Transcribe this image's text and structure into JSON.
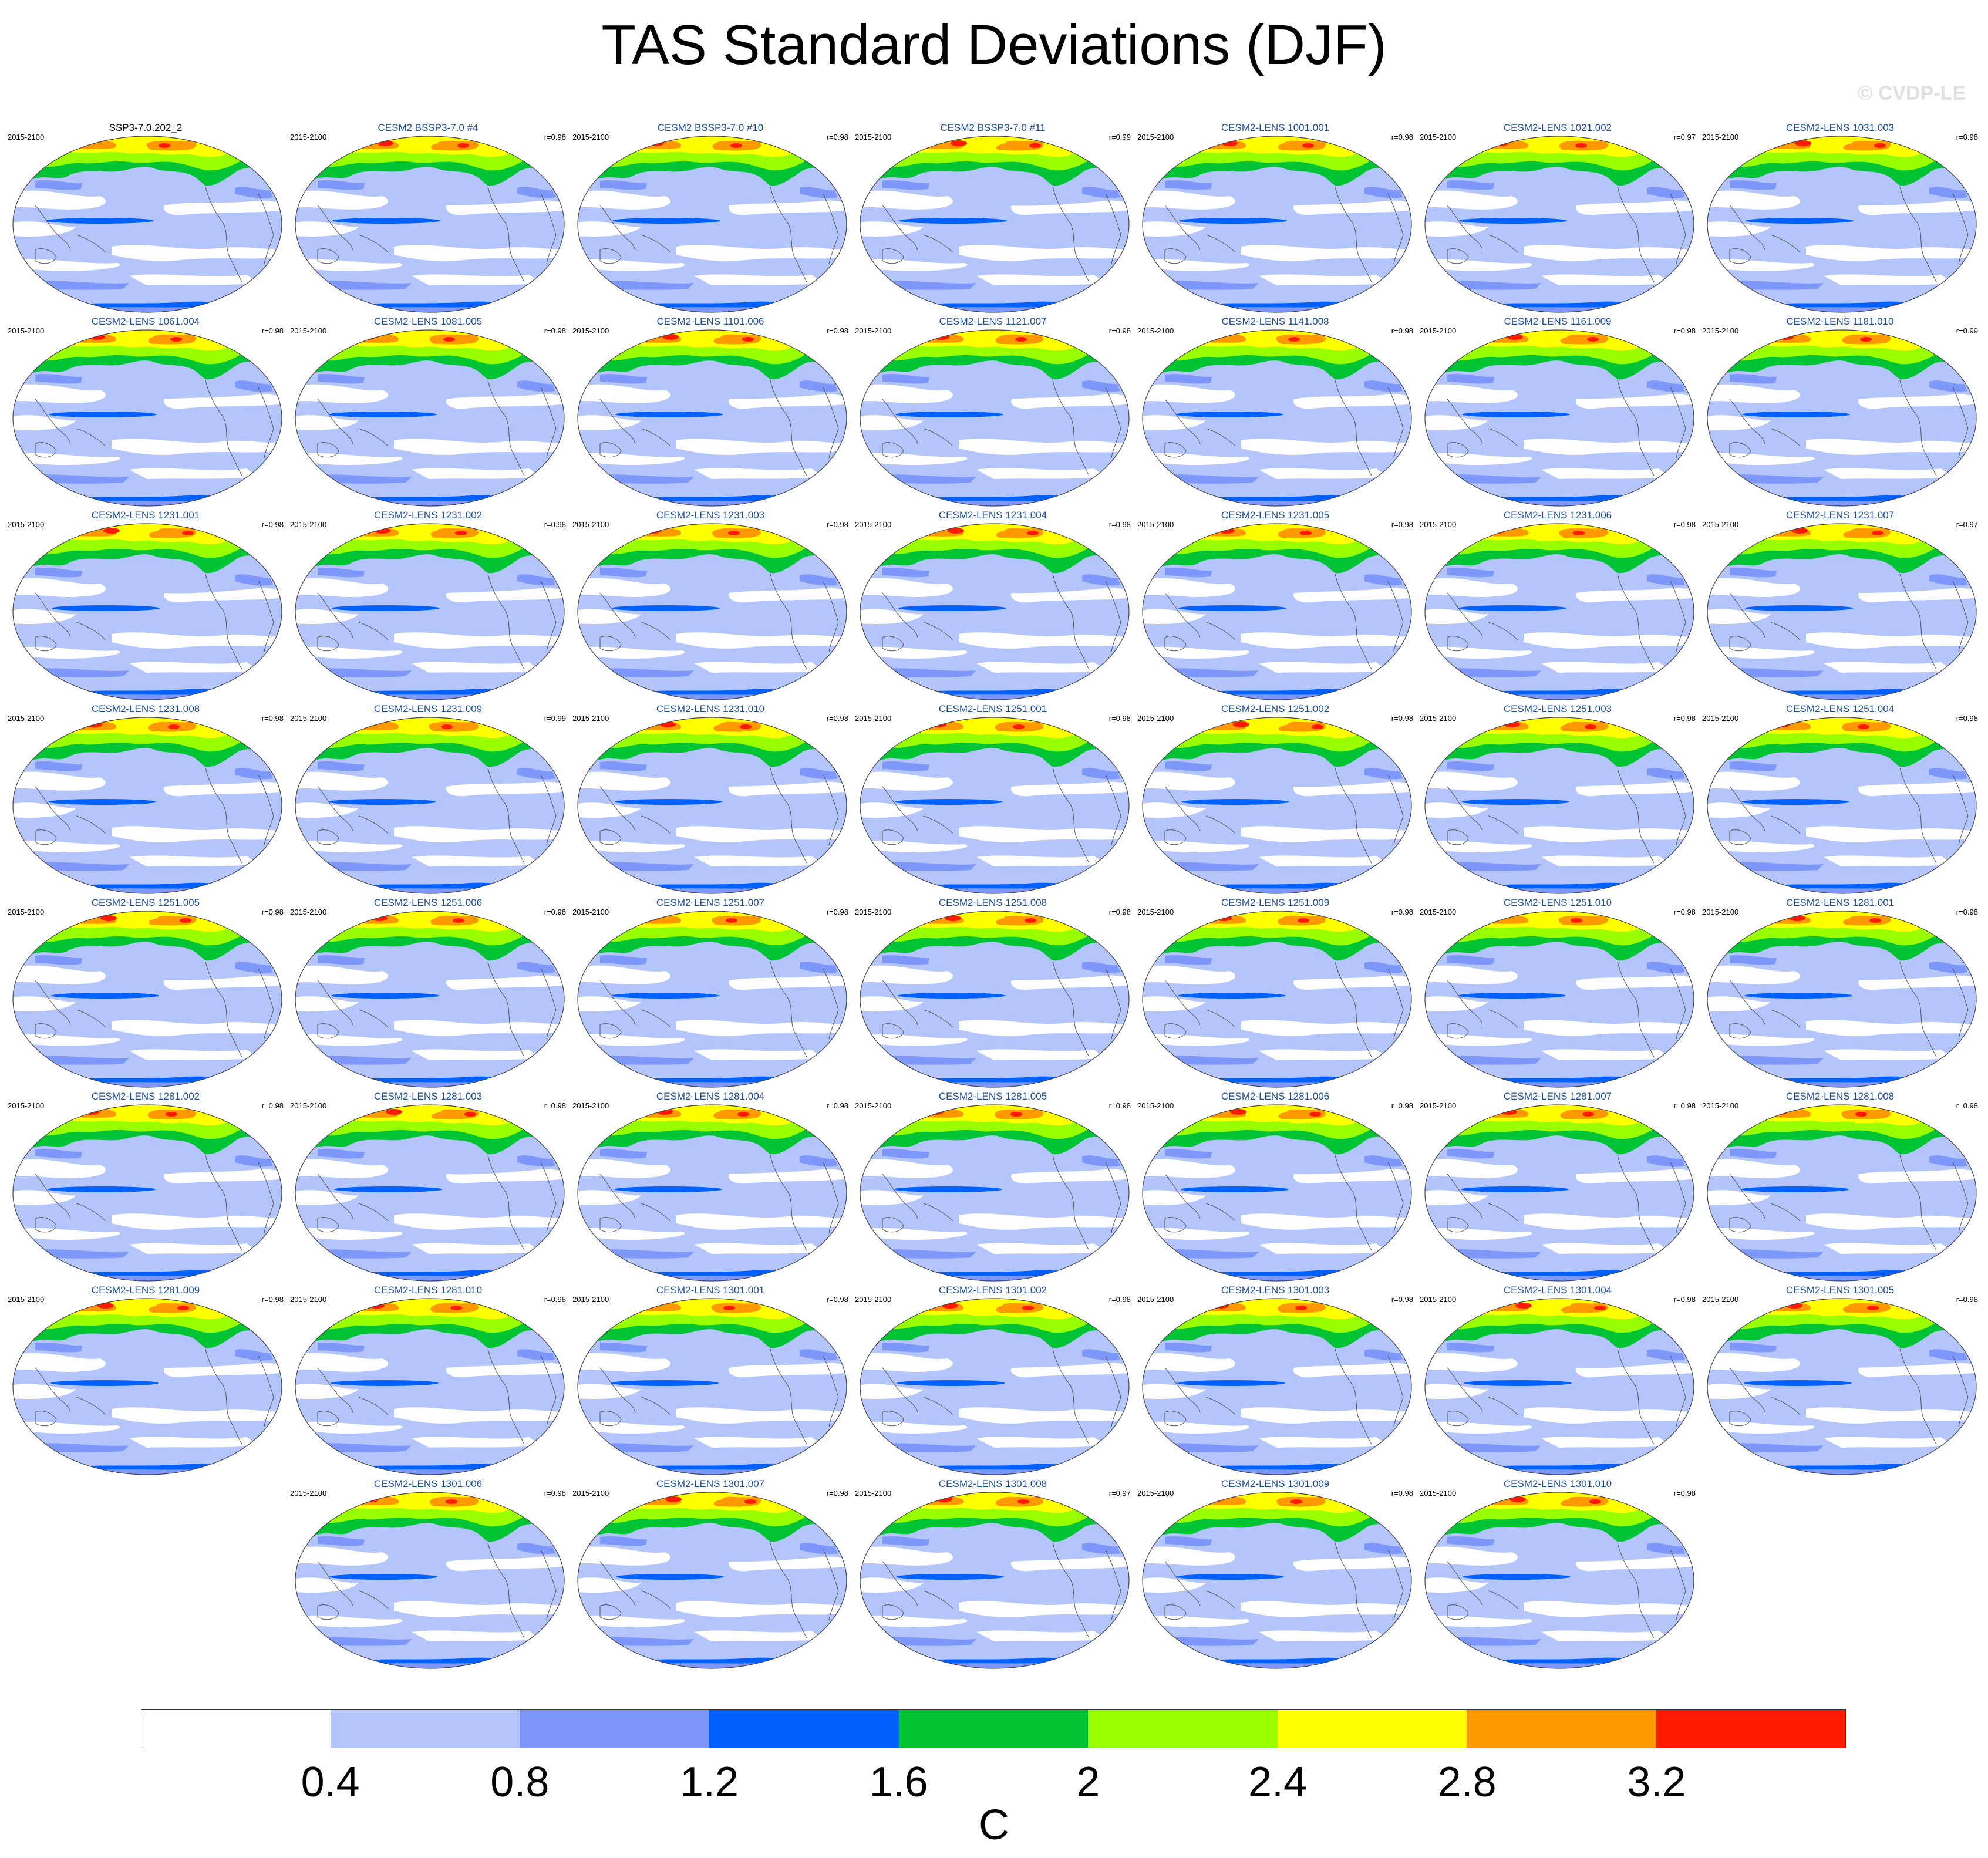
{
  "title": "TAS Standard Deviations (DJF)",
  "watermark": "© CVDP-LE",
  "colorbar": {
    "colors": [
      "#ffffff",
      "#b3c5fb",
      "#7d97fa",
      "#0061ff",
      "#00c433",
      "#99ff00",
      "#ffff00",
      "#ff9900",
      "#ff1a00"
    ],
    "ticks": [
      "0.4",
      "0.8",
      "1.2",
      "1.6",
      "2",
      "2.4",
      "2.8",
      "3.2"
    ],
    "units": "C"
  },
  "map_colors": {
    "ocean_base": "#b3c5fb",
    "low": "#ffffff",
    "mid": "#7d97fa",
    "equatorial": "#0061ff",
    "land_green": "#00c433",
    "land_lime": "#99ff00",
    "land_yellow": "#ffff00",
    "land_orange": "#ff9900",
    "land_red": "#ff1a00",
    "coast": "#555555"
  },
  "panels": [
    {
      "title": "SSP3-7.0.202_2",
      "years": "2015-2100",
      "corr": "",
      "ref": true
    },
    {
      "title": "CESM2 BSSP3-7.0 #4",
      "years": "2015-2100",
      "corr": "r=0.98"
    },
    {
      "title": "CESM2 BSSP3-7.0 #10",
      "years": "2015-2100",
      "corr": "r=0.98"
    },
    {
      "title": "CESM2 BSSP3-7.0 #11",
      "years": "2015-2100",
      "corr": "r=0.99"
    },
    {
      "title": "CESM2-LENS 1001.001",
      "years": "2015-2100",
      "corr": "r=0.98"
    },
    {
      "title": "CESM2-LENS 1021.002",
      "years": "2015-2100",
      "corr": "r=0.97"
    },
    {
      "title": "CESM2-LENS 1031.003",
      "years": "2015-2100",
      "corr": "r=0.98"
    },
    {
      "title": "CESM2-LENS 1061.004",
      "years": "2015-2100",
      "corr": "r=0.98"
    },
    {
      "title": "CESM2-LENS 1081.005",
      "years": "2015-2100",
      "corr": "r=0.98"
    },
    {
      "title": "CESM2-LENS 1101.006",
      "years": "2015-2100",
      "corr": "r=0.98"
    },
    {
      "title": "CESM2-LENS 1121.007",
      "years": "2015-2100",
      "corr": "r=0.98"
    },
    {
      "title": "CESM2-LENS 1141.008",
      "years": "2015-2100",
      "corr": "r=0.98"
    },
    {
      "title": "CESM2-LENS 1161.009",
      "years": "2015-2100",
      "corr": "r=0.98"
    },
    {
      "title": "CESM2-LENS 1181.010",
      "years": "2015-2100",
      "corr": "r=0.99"
    },
    {
      "title": "CESM2-LENS 1231.001",
      "years": "2015-2100",
      "corr": "r=0.98"
    },
    {
      "title": "CESM2-LENS 1231.002",
      "years": "2015-2100",
      "corr": "r=0.98"
    },
    {
      "title": "CESM2-LENS 1231.003",
      "years": "2015-2100",
      "corr": "r=0.98"
    },
    {
      "title": "CESM2-LENS 1231.004",
      "years": "2015-2100",
      "corr": "r=0.98"
    },
    {
      "title": "CESM2-LENS 1231.005",
      "years": "2015-2100",
      "corr": "r=0.98"
    },
    {
      "title": "CESM2-LENS 1231.006",
      "years": "2015-2100",
      "corr": "r=0.98"
    },
    {
      "title": "CESM2-LENS 1231.007",
      "years": "2015-2100",
      "corr": "r=0.97"
    },
    {
      "title": "CESM2-LENS 1231.008",
      "years": "2015-2100",
      "corr": "r=0.98"
    },
    {
      "title": "CESM2-LENS 1231.009",
      "years": "2015-2100",
      "corr": "r=0.99"
    },
    {
      "title": "CESM2-LENS 1231.010",
      "years": "2015-2100",
      "corr": "r=0.98"
    },
    {
      "title": "CESM2-LENS 1251.001",
      "years": "2015-2100",
      "corr": "r=0.98"
    },
    {
      "title": "CESM2-LENS 1251.002",
      "years": "2015-2100",
      "corr": "r=0.98"
    },
    {
      "title": "CESM2-LENS 1251.003",
      "years": "2015-2100",
      "corr": "r=0.98"
    },
    {
      "title": "CESM2-LENS 1251.004",
      "years": "2015-2100",
      "corr": "r=0.98"
    },
    {
      "title": "CESM2-LENS 1251.005",
      "years": "2015-2100",
      "corr": "r=0.98"
    },
    {
      "title": "CESM2-LENS 1251.006",
      "years": "2015-2100",
      "corr": "r=0.98"
    },
    {
      "title": "CESM2-LENS 1251.007",
      "years": "2015-2100",
      "corr": "r=0.98"
    },
    {
      "title": "CESM2-LENS 1251.008",
      "years": "2015-2100",
      "corr": "r=0.98"
    },
    {
      "title": "CESM2-LENS 1251.009",
      "years": "2015-2100",
      "corr": "r=0.98"
    },
    {
      "title": "CESM2-LENS 1251.010",
      "years": "2015-2100",
      "corr": "r=0.98"
    },
    {
      "title": "CESM2-LENS 1281.001",
      "years": "2015-2100",
      "corr": "r=0.98"
    },
    {
      "title": "CESM2-LENS 1281.002",
      "years": "2015-2100",
      "corr": "r=0.98"
    },
    {
      "title": "CESM2-LENS 1281.003",
      "years": "2015-2100",
      "corr": "r=0.98"
    },
    {
      "title": "CESM2-LENS 1281.004",
      "years": "2015-2100",
      "corr": "r=0.98"
    },
    {
      "title": "CESM2-LENS 1281.005",
      "years": "2015-2100",
      "corr": "r=0.98"
    },
    {
      "title": "CESM2-LENS 1281.006",
      "years": "2015-2100",
      "corr": "r=0.98"
    },
    {
      "title": "CESM2-LENS 1281.007",
      "years": "2015-2100",
      "corr": "r=0.98"
    },
    {
      "title": "CESM2-LENS 1281.008",
      "years": "2015-2100",
      "corr": "r=0.98"
    },
    {
      "title": "CESM2-LENS 1281.009",
      "years": "2015-2100",
      "corr": "r=0.98"
    },
    {
      "title": "CESM2-LENS 1281.010",
      "years": "2015-2100",
      "corr": "r=0.98"
    },
    {
      "title": "CESM2-LENS 1301.001",
      "years": "2015-2100",
      "corr": "r=0.98"
    },
    {
      "title": "CESM2-LENS 1301.002",
      "years": "2015-2100",
      "corr": "r=0.98"
    },
    {
      "title": "CESM2-LENS 1301.003",
      "years": "2015-2100",
      "corr": "r=0.98"
    },
    {
      "title": "CESM2-LENS 1301.004",
      "years": "2015-2100",
      "corr": "r=0.98"
    },
    {
      "title": "CESM2-LENS 1301.005",
      "years": "2015-2100",
      "corr": "r=0.98"
    },
    {
      "title": "CESM2-LENS 1301.006",
      "years": "2015-2100",
      "corr": "r=0.98"
    },
    {
      "title": "CESM2-LENS 1301.007",
      "years": "2015-2100",
      "corr": "r=0.98"
    },
    {
      "title": "CESM2-LENS 1301.008",
      "years": "2015-2100",
      "corr": "r=0.97"
    },
    {
      "title": "CESM2-LENS 1301.009",
      "years": "2015-2100",
      "corr": "r=0.98"
    },
    {
      "title": "CESM2-LENS 1301.010",
      "years": "2015-2100",
      "corr": "r=0.98"
    }
  ]
}
